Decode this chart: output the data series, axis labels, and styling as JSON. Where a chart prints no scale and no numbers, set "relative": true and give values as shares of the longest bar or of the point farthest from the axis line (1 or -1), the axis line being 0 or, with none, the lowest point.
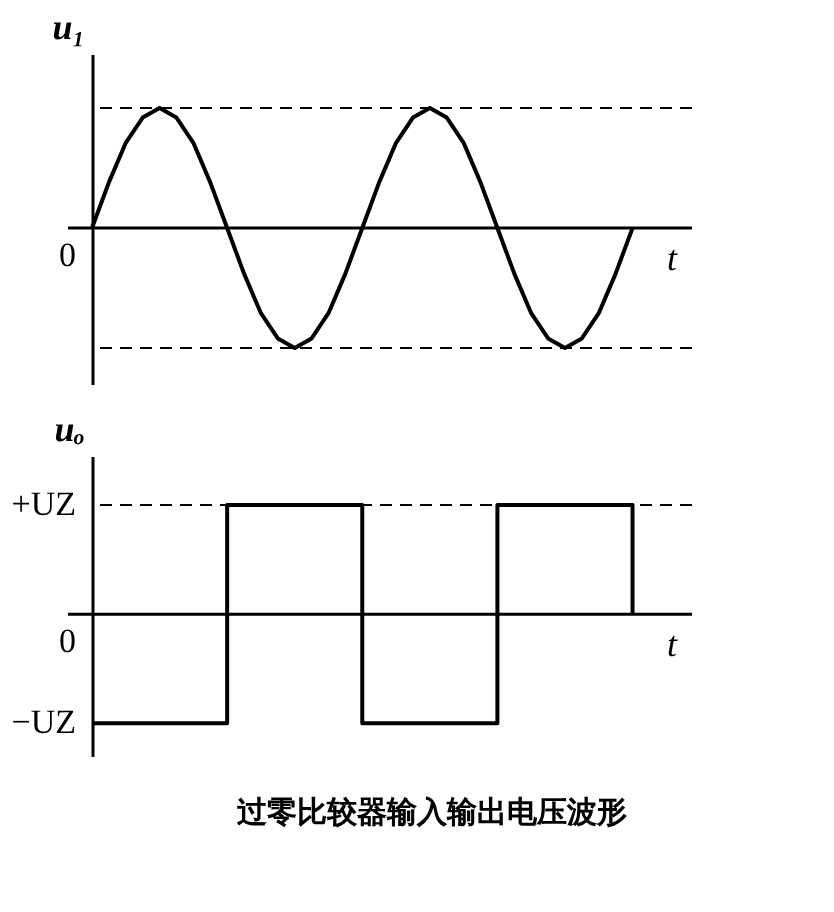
{
  "chart_data": [
    {
      "type": "line",
      "relative": true,
      "categories": [
        null,
        null,
        null,
        null,
        null,
        null,
        null,
        null,
        null,
        null,
        null,
        null,
        null,
        null,
        null,
        null,
        null,
        null,
        null,
        null,
        null,
        null,
        null,
        null,
        null,
        null,
        null,
        null,
        null,
        null,
        null,
        null,
        null
      ],
      "ylabel": "u₁",
      "xlabel": "t",
      "legend": false,
      "series": [
        {
          "color": "#000000",
          "values": [
            0,
            0.38,
            0.71,
            0.92,
            1,
            0.92,
            0.71,
            0.38,
            0,
            -0.38,
            -0.71,
            -0.92,
            -1,
            -0.92,
            -0.71,
            -0.38,
            0,
            0.38,
            0.71,
            0.92,
            1,
            0.92,
            0.71,
            0.38,
            0,
            -0.38,
            -0.71,
            -0.92,
            -1,
            -0.92,
            -0.71,
            -0.38,
            0
          ]
        }
      ],
      "ref_lines": [
        {
          "axis": "y",
          "value": 1,
          "line_style": "dashed"
        },
        {
          "axis": "y",
          "value": -1,
          "line_style": "dashed"
        }
      ],
      "annotations": [
        "0"
      ]
    },
    {
      "type": "step",
      "relative": true,
      "categories": [
        null,
        null,
        null,
        null,
        null
      ],
      "ylabel": "uₒ",
      "xlabel": "t",
      "legend": false,
      "series": [
        {
          "color": "#000000",
          "values": [
            -1,
            1,
            -1,
            1,
            0
          ]
        }
      ],
      "ref_lines": [
        {
          "axis": "y",
          "value": 1,
          "line_style": "dashed"
        }
      ],
      "annotations": [
        "+UZ",
        "0",
        "−UZ",
        "过零比较器输入输出电压波形"
      ]
    }
  ]
}
